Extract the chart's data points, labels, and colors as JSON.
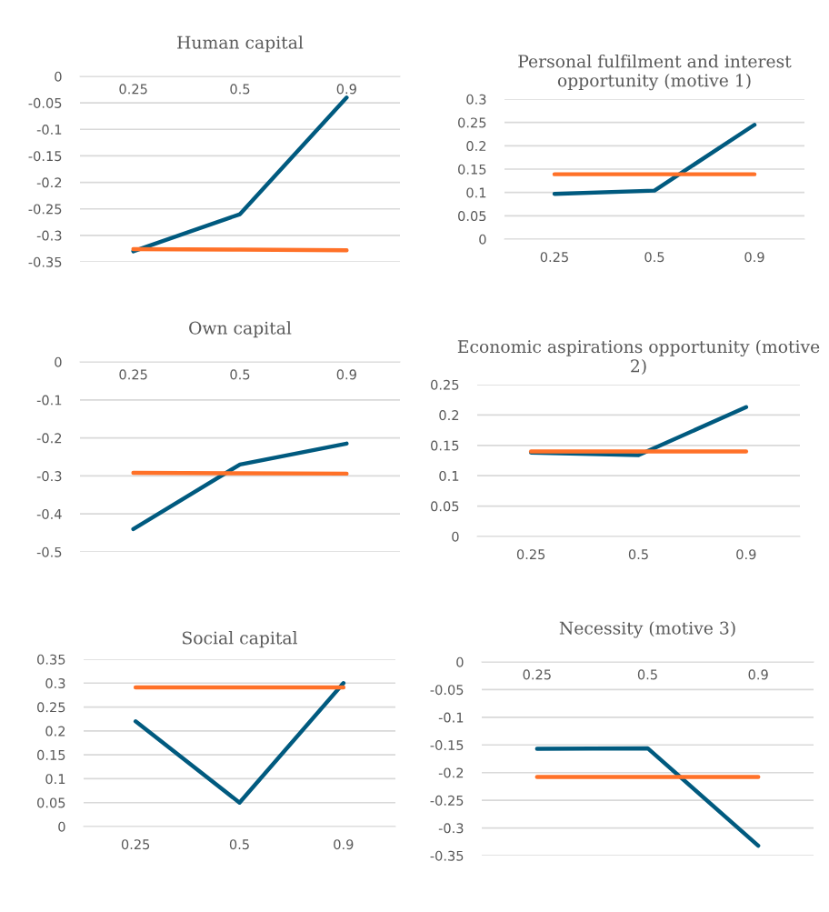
{
  "chart_data": [
    {
      "type": "line",
      "title": "Human capital",
      "categories": [
        "0.25",
        "0.5",
        "0.9"
      ],
      "ylim": [
        -0.35,
        0
      ],
      "yticks": [
        -0.35,
        -0.3,
        -0.25,
        -0.2,
        -0.15,
        -0.1,
        -0.05,
        0
      ],
      "grid": "y",
      "legend": false,
      "series": [
        {
          "color": "#005a7f",
          "values": [
            -0.33,
            -0.26,
            -0.04
          ]
        },
        {
          "color": "#ff7128",
          "values": [
            -0.326,
            -0.327,
            -0.328
          ]
        }
      ]
    },
    {
      "type": "line",
      "title": "Personal fulfilment and interest opportunity (motive 1)",
      "categories": [
        "0.25",
        "0.5",
        "0.9"
      ],
      "ylim": [
        0,
        0.3
      ],
      "yticks": [
        0,
        0.05,
        0.1,
        0.15,
        0.2,
        0.25,
        0.3
      ],
      "grid": "y",
      "legend": false,
      "series": [
        {
          "color": "#005a7f",
          "values": [
            0.097,
            0.104,
            0.245
          ]
        },
        {
          "color": "#ff7128",
          "values": [
            0.139,
            0.139,
            0.139
          ]
        }
      ]
    },
    {
      "type": "line",
      "title": "Own capital",
      "categories": [
        "0.25",
        "0.5",
        "0.9"
      ],
      "ylim": [
        -0.5,
        0
      ],
      "yticks": [
        -0.5,
        -0.4,
        -0.3,
        -0.2,
        -0.1,
        0
      ],
      "grid": "y",
      "legend": false,
      "series": [
        {
          "color": "#005a7f",
          "values": [
            -0.44,
            -0.27,
            -0.215
          ]
        },
        {
          "color": "#ff7128",
          "values": [
            -0.292,
            -0.293,
            -0.294
          ]
        }
      ]
    },
    {
      "type": "line",
      "title": "Economic aspirations opportunity (motive 2)",
      "categories": [
        "0.25",
        "0.5",
        "0.9"
      ],
      "ylim": [
        0,
        0.25
      ],
      "yticks": [
        0,
        0.05,
        0.1,
        0.15,
        0.2,
        0.25
      ],
      "grid": "y",
      "legend": false,
      "series": [
        {
          "color": "#005a7f",
          "values": [
            0.138,
            0.134,
            0.213
          ]
        },
        {
          "color": "#ff7128",
          "values": [
            0.14,
            0.14,
            0.14
          ]
        }
      ]
    },
    {
      "type": "line",
      "title": "Social capital",
      "categories": [
        "0.25",
        "0.5",
        "0.9"
      ],
      "ylim": [
        0,
        0.35
      ],
      "yticks": [
        0,
        0.05,
        0.1,
        0.15,
        0.2,
        0.25,
        0.3,
        0.35
      ],
      "grid": "y",
      "legend": false,
      "series": [
        {
          "color": "#005a7f",
          "values": [
            0.22,
            0.05,
            0.3
          ]
        },
        {
          "color": "#ff7128",
          "values": [
            0.291,
            0.291,
            0.291
          ]
        }
      ]
    },
    {
      "type": "line",
      "title": "Necessity (motive 3)",
      "categories": [
        "0.25",
        "0.5",
        "0.9"
      ],
      "ylim": [
        -0.35,
        0
      ],
      "yticks": [
        -0.35,
        -0.3,
        -0.25,
        -0.2,
        -0.15,
        -0.1,
        -0.05,
        0
      ],
      "grid": "y",
      "legend": false,
      "series": [
        {
          "color": "#005a7f",
          "values": [
            -0.157,
            -0.156,
            -0.332
          ]
        },
        {
          "color": "#ff7128",
          "values": [
            -0.208,
            -0.208,
            -0.208
          ]
        }
      ]
    }
  ]
}
